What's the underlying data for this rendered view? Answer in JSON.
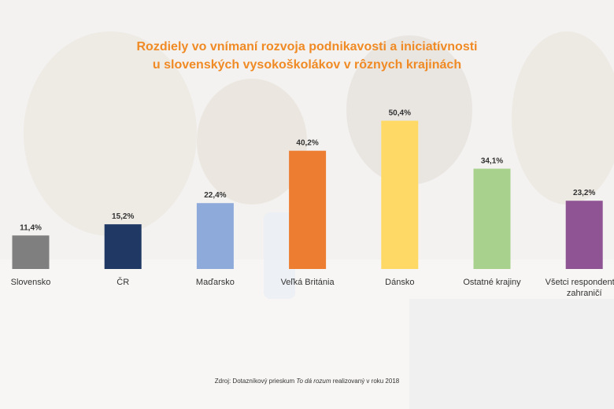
{
  "title_lines": [
    "Rozdiely vo vnímaní rozvoja podnikavosti a iniciatívnosti",
    "u slovenských vysokoškolákov v rôznych krajinách"
  ],
  "chart_data": {
    "type": "bar",
    "title": "Rozdiely vo vnímaní rozvoja podnikavosti a iniciatívnosti u slovenských vysokoškolákov v rôznych krajinách",
    "categories": [
      "Slovensko",
      "ČR",
      "Maďarsko",
      "Veľká Británia",
      "Dánsko",
      "Ostatné krajiny",
      "Všetci respondenti v zahraničí"
    ],
    "category_lines": [
      [
        "Slovensko"
      ],
      [
        "ČR"
      ],
      [
        "Maďarsko"
      ],
      [
        "Veľká Británia"
      ],
      [
        "Dánsko"
      ],
      [
        "Ostatné krajiny"
      ],
      [
        "Všetci respondenti v",
        "zahraničí"
      ]
    ],
    "values": [
      11.4,
      15.2,
      22.4,
      40.2,
      50.4,
      34.1,
      23.2
    ],
    "value_labels": [
      "11,4%",
      "15,2%",
      "22,4%",
      "40,2%",
      "50,4%",
      "34,1%",
      "23,2%"
    ],
    "colors": [
      "#7f7f7f",
      "#1f3864",
      "#8eaadb",
      "#ed7d31",
      "#ffd966",
      "#a9d18e",
      "#8e5494"
    ],
    "xlabel": "",
    "ylabel": "",
    "grid": false,
    "legend": "none"
  },
  "source": {
    "prefix": "Zdroj: Dotazníkový prieskum ",
    "italic": "To dá rozum",
    "suffix": " realizovaný v roku 2018"
  },
  "colors": {
    "title": "#f08a24",
    "text": "#333333"
  }
}
